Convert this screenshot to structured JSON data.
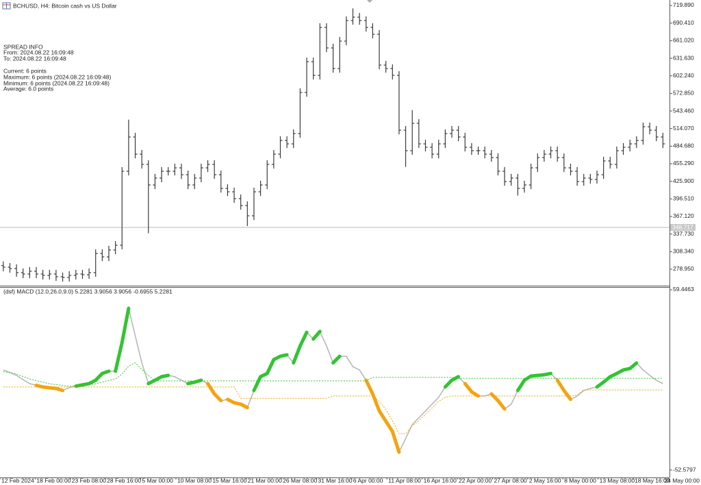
{
  "chart_data": [
    {
      "type": "ohlc",
      "title": "BCHUSD, H4:  Bitcoin cash vs US Dollar",
      "annotations": [
        "SPREAD INFO",
        "From: 2024.08.22 16:09:48",
        "To: 2024.08.22 16:09:48",
        "Current: 6 points",
        "Maximum: 6 points (2024.08.22 16:09:48)",
        "Minimum: 6 points (2024.08.22 16:09:48)",
        "Average: 6.0 points"
      ],
      "color": "#3a3a3a",
      "grid": false,
      "xlim": [
        0,
        101.5
      ],
      "ylim": [
        251.4,
        729.05
      ],
      "yticks": [
        {
          "value": 719.89,
          "label": "719.890"
        },
        {
          "value": 690.41,
          "label": "690.410"
        },
        {
          "value": 661.02,
          "label": "661.020"
        },
        {
          "value": 631.63,
          "label": "631.630"
        },
        {
          "value": 602.24,
          "label": "602.240"
        },
        {
          "value": 572.85,
          "label": "572.850"
        },
        {
          "value": 543.46,
          "label": "543.460"
        },
        {
          "value": 514.07,
          "label": "514.070"
        },
        {
          "value": 484.68,
          "label": "484.680"
        },
        {
          "value": 455.29,
          "label": "455.290"
        },
        {
          "value": 425.9,
          "label": "425.900"
        },
        {
          "value": 396.51,
          "label": "396.510"
        },
        {
          "value": 367.12,
          "label": "367.120"
        },
        {
          "value": 337.73,
          "label": "337.730"
        },
        {
          "value": 308.34,
          "label": "308.340"
        },
        {
          "value": 278.95,
          "label": "278.950"
        }
      ],
      "current_price": 348.717,
      "open": [
        285.0,
        282.3,
        280.0,
        273.2,
        270.9,
        275.5,
        270.9,
        268.6,
        270.9,
        266.3,
        265.2,
        268.6,
        270.9,
        269.7,
        273.2,
        305.2,
        299.5,
        311.0,
        319.0,
        442.7,
        500.0,
        471.3,
        454.2,
        419.8,
        431.3,
        442.7,
        442.7,
        448.4,
        436.9,
        419.8,
        431.3,
        448.4,
        454.2,
        436.9,
        414.0,
        408.3,
        396.9,
        385.4,
        368.2,
        408.3,
        419.8,
        454.2,
        471.3,
        494.2,
        488.5,
        505.7,
        574.4,
        625.9,
        603.1,
        683.2,
        648.9,
        614.5,
        660.3,
        694.7,
        700.4,
        694.7,
        683.2,
        671.8,
        620.2,
        614.5,
        603.1,
        511.4,
        477.1,
        522.9,
        488.5,
        482.8,
        471.3,
        488.5,
        505.7,
        511.4,
        500.0,
        482.8,
        477.1,
        477.1,
        471.3,
        465.6,
        442.7,
        425.5,
        431.3,
        414.0,
        419.8,
        448.4,
        465.6,
        471.3,
        477.1,
        465.6,
        448.4,
        442.7,
        425.5,
        431.3,
        429.0,
        436.9,
        459.9,
        454.2,
        477.1,
        482.8,
        488.5,
        494.2,
        517.1,
        511.4,
        500.0
      ],
      "high": [
        292.0,
        289.3,
        287.0,
        280.2,
        282.5,
        282.5,
        277.9,
        277.9,
        277.9,
        273.3,
        275.6,
        277.9,
        277.9,
        280.2,
        312.2,
        312.2,
        318.0,
        326.0,
        449.7,
        529.0,
        507.0,
        478.3,
        461.2,
        438.3,
        449.7,
        449.7,
        455.4,
        455.4,
        443.9,
        438.3,
        455.4,
        461.2,
        461.2,
        443.9,
        421.0,
        415.3,
        403.9,
        392.4,
        415.3,
        426.8,
        461.2,
        478.3,
        501.2,
        501.2,
        512.7,
        581.4,
        632.9,
        632.9,
        690.2,
        690.2,
        655.9,
        667.3,
        701.7,
        715.0,
        707.4,
        701.7,
        690.2,
        678.8,
        627.2,
        621.5,
        610.1,
        518.4,
        545.0,
        529.9,
        495.5,
        489.8,
        495.5,
        512.7,
        518.4,
        518.4,
        507.0,
        489.8,
        484.1,
        484.1,
        478.3,
        472.6,
        449.7,
        438.3,
        438.3,
        426.8,
        455.4,
        472.6,
        478.3,
        484.1,
        484.1,
        472.6,
        455.4,
        449.7,
        438.3,
        438.3,
        443.9,
        466.9,
        466.9,
        484.1,
        489.8,
        495.5,
        501.2,
        524.1,
        524.1,
        518.4,
        507.0
      ],
      "low": [
        275.3,
        273.0,
        266.2,
        263.9,
        263.9,
        263.9,
        261.6,
        261.6,
        259.3,
        258.2,
        258.2,
        261.6,
        262.7,
        262.7,
        266.2,
        292.5,
        292.5,
        304.0,
        312.0,
        435.7,
        464.3,
        447.2,
        339.0,
        412.8,
        424.3,
        435.7,
        435.7,
        429.9,
        412.8,
        412.8,
        424.3,
        441.4,
        429.9,
        407.0,
        401.3,
        389.9,
        378.4,
        351.0,
        361.2,
        401.3,
        412.8,
        447.2,
        464.3,
        481.5,
        481.5,
        498.7,
        567.4,
        596.1,
        596.1,
        641.9,
        607.5,
        607.5,
        653.3,
        687.7,
        687.7,
        676.2,
        664.8,
        613.2,
        607.5,
        596.1,
        504.4,
        450.0,
        470.1,
        481.5,
        475.8,
        464.3,
        464.3,
        481.5,
        498.7,
        493.0,
        475.8,
        470.1,
        470.1,
        464.3,
        458.6,
        435.7,
        418.5,
        418.5,
        402.0,
        407.0,
        412.8,
        441.4,
        458.6,
        464.3,
        458.6,
        441.4,
        435.7,
        418.5,
        418.5,
        422.0,
        422.0,
        429.9,
        447.2,
        447.2,
        470.1,
        475.8,
        481.5,
        487.2,
        504.4,
        493.0,
        481.5
      ],
      "close": [
        282.3,
        280.0,
        273.2,
        270.9,
        275.5,
        270.9,
        268.6,
        270.9,
        266.3,
        265.2,
        268.6,
        270.9,
        269.7,
        273.2,
        305.2,
        299.5,
        311.0,
        319.0,
        442.7,
        500.0,
        471.3,
        454.2,
        419.8,
        431.3,
        442.7,
        442.7,
        448.4,
        436.9,
        419.8,
        431.3,
        448.4,
        454.2,
        436.9,
        414.0,
        408.3,
        396.9,
        385.4,
        368.2,
        408.3,
        419.8,
        454.2,
        471.3,
        494.2,
        488.5,
        505.7,
        574.4,
        625.9,
        603.1,
        683.2,
        648.9,
        614.5,
        660.3,
        694.7,
        700.4,
        694.7,
        683.2,
        671.8,
        620.2,
        614.5,
        603.1,
        511.4,
        477.1,
        522.9,
        488.5,
        482.8,
        471.3,
        488.5,
        505.7,
        511.4,
        500.0,
        482.8,
        477.1,
        477.1,
        471.3,
        465.6,
        442.7,
        425.5,
        431.3,
        414.0,
        419.8,
        448.4,
        465.6,
        471.3,
        477.1,
        465.6,
        448.4,
        442.7,
        425.5,
        431.3,
        429.0,
        436.9,
        459.9,
        454.2,
        477.1,
        482.8,
        488.5,
        494.2,
        517.1,
        511.4,
        500.0,
        488.5
      ]
    },
    {
      "type": "macd",
      "title": "(dsf) MACD (12.0,26.0,9.0) 5.2281 3.9056 3.9056 -0.6955 5.2281",
      "grid": false,
      "up_color": "#33c433",
      "down_color": "#f5a30f",
      "xlim": [
        0,
        101.5
      ],
      "ylim": [
        -57.26,
        61.15
      ],
      "yticks": [
        59.4463,
        -52.5797
      ],
      "xticks": [
        {
          "value": 0,
          "label": "12 Feb 2024"
        },
        {
          "value": 5.333,
          "label": "18 Feb 00:00"
        },
        {
          "value": 10.667,
          "label": "23 Feb 08:00"
        },
        {
          "value": 16,
          "label": "28 Feb 16:00"
        },
        {
          "value": 21.333,
          "label": "5 Mar 00:00"
        },
        {
          "value": 26.667,
          "label": "10 Mar 08:00"
        },
        {
          "value": 32,
          "label": "15 Mar 16:00"
        },
        {
          "value": 37.333,
          "label": "21 Mar 00:00"
        },
        {
          "value": 42.667,
          "label": "26 Mar 08:00"
        },
        {
          "value": 48,
          "label": "31 Mar 16:00"
        },
        {
          "value": 53.333,
          "label": "6 Apr 00:00"
        },
        {
          "value": 58.667,
          "label": "11 Apr 08:00"
        },
        {
          "value": 64,
          "label": "16 Apr 16:00"
        },
        {
          "value": 69.333,
          "label": "22 Apr 00:00"
        },
        {
          "value": 74.667,
          "label": "27 Apr 08:00"
        },
        {
          "value": 80,
          "label": "2 May 16:00"
        },
        {
          "value": 85.333,
          "label": "8 May 00:00"
        },
        {
          "value": 90.667,
          "label": "13 May 08:00"
        },
        {
          "value": 96,
          "label": "18 May 16:00"
        },
        {
          "value": 101.333,
          "label": "24 May 00:00"
        }
      ],
      "series": [
        {
          "color": "#b8b8b8",
          "line_style": "solid",
          "values": [
            9.6,
            8.0,
            6.2,
            3.5,
            1.1,
            0.0,
            -1.0,
            -1.5,
            -1.9,
            -3.2,
            -1.4,
            -0.5,
            0.3,
            1.1,
            3.2,
            7.4,
            8.8,
            8.8,
            26.6,
            47.9,
            30.9,
            14.0,
            1.1,
            3.2,
            5.4,
            6.2,
            5.4,
            3.2,
            1.1,
            2.0,
            3.2,
            1.1,
            -5.3,
            -9.5,
            -8.7,
            -10.8,
            -11.7,
            -13.8,
            -3.2,
            5.4,
            7.4,
            16.0,
            18.1,
            19.0,
            14.0,
            24.5,
            33.0,
            28.8,
            33.5,
            24.5,
            14.0,
            18.1,
            18.1,
            11.6,
            9.6,
            3.2,
            -5.3,
            -15.9,
            -22.3,
            -28.7,
            -41.5,
            -33.0,
            -24.4,
            -20.2,
            -15.9,
            -11.7,
            -7.4,
            -1.0,
            3.2,
            5.4,
            1.1,
            -4.0,
            -6.6,
            -6.6,
            -5.3,
            -9.5,
            -14.7,
            -11.7,
            -3.2,
            3.2,
            5.8,
            6.2,
            6.6,
            7.4,
            3.2,
            -3.2,
            -8.7,
            -6.6,
            -3.2,
            -1.9,
            -1.0,
            2.0,
            5.4,
            7.4,
            9.6,
            10.5,
            13.9,
            9.6,
            6.2,
            3.2,
            1.1
          ]
        },
        {
          "color": "#33c433",
          "line_style": "dotted",
          "values": [
            8.5,
            8.0,
            7.0,
            5.5,
            4.0,
            3.0,
            2.0,
            1.0,
            0.5,
            0.0,
            -0.5,
            -0.5,
            0.0,
            0.5,
            1.0,
            2.0,
            3.0,
            4.0,
            7.0,
            12.0,
            14.0,
            10.0,
            6.2,
            2.8,
            2.8,
            2.8,
            2.8,
            2.8,
            2.8,
            2.8,
            2.8,
            2.8,
            2.8,
            2.8,
            2.8,
            2.8,
            2.8,
            2.8,
            2.8,
            2.8,
            2.8,
            2.8,
            2.8,
            2.8,
            2.8,
            2.8,
            2.8,
            2.8,
            2.8,
            2.8,
            2.8,
            2.8,
            2.8,
            2.8,
            2.8,
            2.8,
            5.0,
            5.0,
            5.0,
            5.0,
            5.0,
            5.0,
            5.0,
            5.0,
            5.0,
            5.0,
            5.0,
            5.0,
            5.0,
            4.4,
            4.4,
            4.4,
            4.4,
            4.4,
            4.4,
            4.4,
            4.4,
            4.4,
            4.4,
            4.4,
            4.4,
            4.4,
            4.4,
            4.4,
            4.4,
            4.4,
            4.4,
            4.4,
            4.4,
            4.4,
            4.4,
            4.4,
            4.4,
            4.4,
            4.4,
            4.4,
            4.4,
            4.4,
            4.4,
            4.4,
            4.4
          ]
        },
        {
          "color": "#f5a30f",
          "line_style": "dotted",
          "values": [
            -1.0,
            -1.0,
            -1.0,
            -1.0,
            -1.0,
            -1.0,
            -1.0,
            -1.0,
            -1.0,
            -1.0,
            -1.0,
            -1.0,
            -1.0,
            -1.0,
            -1.0,
            -1.0,
            -1.0,
            -1.0,
            -1.0,
            -1.0,
            -1.0,
            -1.0,
            -1.0,
            -1.0,
            -1.0,
            -1.0,
            -1.0,
            -1.0,
            -1.0,
            -1.0,
            -1.0,
            -1.0,
            -1.0,
            -1.0,
            -1.0,
            -1.0,
            -8.0,
            -8.0,
            -8.0,
            -8.0,
            -8.0,
            -8.0,
            -8.0,
            -8.0,
            -8.0,
            -8.0,
            -8.0,
            -8.0,
            -8.0,
            -8.0,
            -6.6,
            -6.6,
            -6.6,
            -6.6,
            -6.6,
            -6.6,
            -6.6,
            -10.0,
            -15.0,
            -22.0,
            -30.0,
            -30.0,
            -25.0,
            -22.0,
            -18.0,
            -14.0,
            -10.0,
            -7.4,
            -6.6,
            -6.6,
            -6.6,
            -6.6,
            -6.6,
            -6.6,
            -6.6,
            -6.6,
            -6.6,
            -6.6,
            -6.6,
            -6.6,
            -6.6,
            -6.6,
            -6.6,
            -6.6,
            -6.6,
            -6.6,
            -6.6,
            -6.0,
            -2.8,
            -2.8,
            -2.8,
            -2.8,
            -2.8,
            -2.8,
            -2.8,
            -2.8,
            -2.8,
            -2.8,
            -2.8,
            -2.8,
            -2.8
          ]
        }
      ]
    }
  ]
}
